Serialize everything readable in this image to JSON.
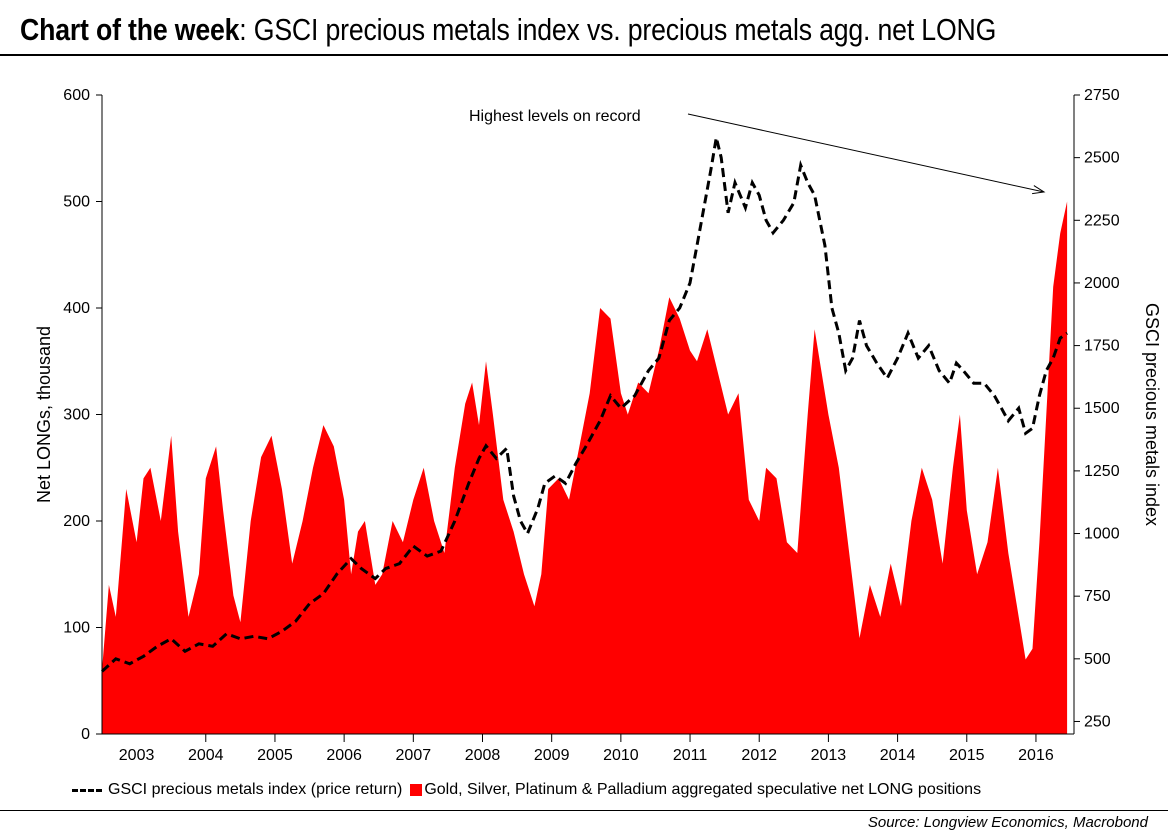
{
  "title": {
    "bold": "Chart of the week",
    "rest": ": GSCI precious metals index vs. precious metals agg. net LONG"
  },
  "source": "Source: Longview Economics, Macrobond",
  "colors": {
    "bars": "#ff0000",
    "line": "#000000"
  },
  "chart_data": {
    "type": "area",
    "x_ticks": [
      "2003",
      "2004",
      "2005",
      "2006",
      "2007",
      "2008",
      "2009",
      "2010",
      "2011",
      "2012",
      "2013",
      "2014",
      "2015",
      "2016"
    ],
    "y_left": {
      "label": "Net LONGs, thousand",
      "range": [
        0,
        600
      ],
      "ticks": [
        "0",
        "100",
        "200",
        "300",
        "400",
        "500",
        "600"
      ]
    },
    "y_right": {
      "label": "GSCI precious metals index",
      "range": [
        200,
        2750
      ],
      "ticks": [
        "250",
        "500",
        "750",
        "1000",
        "1250",
        "1500",
        "1750",
        "2000",
        "2250",
        "2500",
        "2750"
      ]
    },
    "annotation": {
      "text": "Highest levels on record"
    },
    "series": [
      {
        "name": "Gold, Silver, Platinum & Palladium aggregated speculative net LONG positions",
        "style": "area",
        "axis": "left",
        "points": [
          [
            2002.5,
            60
          ],
          [
            2002.6,
            140
          ],
          [
            2002.7,
            110
          ],
          [
            2002.85,
            230
          ],
          [
            2003.0,
            180
          ],
          [
            2003.1,
            240
          ],
          [
            2003.2,
            250
          ],
          [
            2003.35,
            200
          ],
          [
            2003.5,
            280
          ],
          [
            2003.6,
            190
          ],
          [
            2003.75,
            110
          ],
          [
            2003.9,
            150
          ],
          [
            2004.0,
            240
          ],
          [
            2004.15,
            270
          ],
          [
            2004.25,
            210
          ],
          [
            2004.4,
            130
          ],
          [
            2004.5,
            105
          ],
          [
            2004.65,
            200
          ],
          [
            2004.8,
            260
          ],
          [
            2004.95,
            280
          ],
          [
            2005.1,
            230
          ],
          [
            2005.25,
            160
          ],
          [
            2005.4,
            200
          ],
          [
            2005.55,
            250
          ],
          [
            2005.7,
            290
          ],
          [
            2005.85,
            270
          ],
          [
            2006.0,
            220
          ],
          [
            2006.1,
            150
          ],
          [
            2006.2,
            190
          ],
          [
            2006.3,
            200
          ],
          [
            2006.45,
            140
          ],
          [
            2006.55,
            150
          ],
          [
            2006.7,
            200
          ],
          [
            2006.85,
            180
          ],
          [
            2007.0,
            220
          ],
          [
            2007.15,
            250
          ],
          [
            2007.3,
            200
          ],
          [
            2007.45,
            170
          ],
          [
            2007.6,
            250
          ],
          [
            2007.75,
            310
          ],
          [
            2007.85,
            330
          ],
          [
            2007.95,
            290
          ],
          [
            2008.05,
            350
          ],
          [
            2008.15,
            300
          ],
          [
            2008.3,
            220
          ],
          [
            2008.45,
            190
          ],
          [
            2008.6,
            150
          ],
          [
            2008.75,
            120
          ],
          [
            2008.85,
            150
          ],
          [
            2008.95,
            230
          ],
          [
            2009.1,
            240
          ],
          [
            2009.25,
            220
          ],
          [
            2009.4,
            270
          ],
          [
            2009.55,
            320
          ],
          [
            2009.7,
            400
          ],
          [
            2009.85,
            390
          ],
          [
            2010.0,
            320
          ],
          [
            2010.1,
            300
          ],
          [
            2010.25,
            330
          ],
          [
            2010.4,
            320
          ],
          [
            2010.55,
            360
          ],
          [
            2010.7,
            410
          ],
          [
            2010.85,
            390
          ],
          [
            2011.0,
            360
          ],
          [
            2011.1,
            350
          ],
          [
            2011.25,
            380
          ],
          [
            2011.4,
            340
          ],
          [
            2011.55,
            300
          ],
          [
            2011.7,
            320
          ],
          [
            2011.85,
            220
          ],
          [
            2012.0,
            200
          ],
          [
            2012.1,
            250
          ],
          [
            2012.25,
            240
          ],
          [
            2012.4,
            180
          ],
          [
            2012.55,
            170
          ],
          [
            2012.7,
            300
          ],
          [
            2012.8,
            380
          ],
          [
            2012.9,
            340
          ],
          [
            2013.0,
            300
          ],
          [
            2013.15,
            250
          ],
          [
            2013.3,
            170
          ],
          [
            2013.45,
            90
          ],
          [
            2013.6,
            140
          ],
          [
            2013.75,
            110
          ],
          [
            2013.9,
            160
          ],
          [
            2014.05,
            120
          ],
          [
            2014.2,
            200
          ],
          [
            2014.35,
            250
          ],
          [
            2014.5,
            220
          ],
          [
            2014.65,
            160
          ],
          [
            2014.8,
            250
          ],
          [
            2014.9,
            300
          ],
          [
            2015.0,
            210
          ],
          [
            2015.15,
            150
          ],
          [
            2015.3,
            180
          ],
          [
            2015.45,
            250
          ],
          [
            2015.6,
            170
          ],
          [
            2015.75,
            110
          ],
          [
            2015.85,
            70
          ],
          [
            2015.95,
            80
          ],
          [
            2016.05,
            180
          ],
          [
            2016.15,
            300
          ],
          [
            2016.25,
            420
          ],
          [
            2016.35,
            470
          ],
          [
            2016.45,
            500
          ]
        ]
      },
      {
        "name": "GSCI precious metals index (price return)",
        "style": "dashed-line",
        "axis": "right",
        "points": [
          [
            2002.5,
            450
          ],
          [
            2002.7,
            500
          ],
          [
            2002.9,
            480
          ],
          [
            2003.1,
            510
          ],
          [
            2003.3,
            550
          ],
          [
            2003.5,
            580
          ],
          [
            2003.7,
            530
          ],
          [
            2003.9,
            560
          ],
          [
            2004.1,
            550
          ],
          [
            2004.3,
            600
          ],
          [
            2004.5,
            580
          ],
          [
            2004.7,
            590
          ],
          [
            2004.9,
            580
          ],
          [
            2005.1,
            610
          ],
          [
            2005.3,
            650
          ],
          [
            2005.5,
            720
          ],
          [
            2005.7,
            760
          ],
          [
            2005.9,
            840
          ],
          [
            2006.1,
            900
          ],
          [
            2006.25,
            860
          ],
          [
            2006.45,
            820
          ],
          [
            2006.6,
            860
          ],
          [
            2006.8,
            880
          ],
          [
            2007.0,
            950
          ],
          [
            2007.2,
            910
          ],
          [
            2007.4,
            930
          ],
          [
            2007.6,
            1050
          ],
          [
            2007.8,
            1200
          ],
          [
            2007.95,
            1300
          ],
          [
            2008.05,
            1350
          ],
          [
            2008.2,
            1300
          ],
          [
            2008.35,
            1340
          ],
          [
            2008.45,
            1150
          ],
          [
            2008.55,
            1050
          ],
          [
            2008.65,
            1000
          ],
          [
            2008.8,
            1100
          ],
          [
            2008.9,
            1200
          ],
          [
            2009.05,
            1230
          ],
          [
            2009.2,
            1200
          ],
          [
            2009.35,
            1280
          ],
          [
            2009.5,
            1350
          ],
          [
            2009.7,
            1450
          ],
          [
            2009.85,
            1550
          ],
          [
            2010.0,
            1500
          ],
          [
            2010.2,
            1550
          ],
          [
            2010.4,
            1650
          ],
          [
            2010.55,
            1700
          ],
          [
            2010.7,
            1850
          ],
          [
            2010.85,
            1900
          ],
          [
            2011.0,
            2000
          ],
          [
            2011.1,
            2150
          ],
          [
            2011.2,
            2300
          ],
          [
            2011.3,
            2450
          ],
          [
            2011.38,
            2580
          ],
          [
            2011.45,
            2500
          ],
          [
            2011.55,
            2280
          ],
          [
            2011.65,
            2400
          ],
          [
            2011.8,
            2300
          ],
          [
            2011.9,
            2400
          ],
          [
            2012.0,
            2350
          ],
          [
            2012.1,
            2250
          ],
          [
            2012.2,
            2200
          ],
          [
            2012.35,
            2250
          ],
          [
            2012.5,
            2320
          ],
          [
            2012.6,
            2470
          ],
          [
            2012.7,
            2400
          ],
          [
            2012.8,
            2350
          ],
          [
            2012.95,
            2150
          ],
          [
            2013.05,
            1900
          ],
          [
            2013.15,
            1800
          ],
          [
            2013.25,
            1650
          ],
          [
            2013.35,
            1700
          ],
          [
            2013.45,
            1850
          ],
          [
            2013.55,
            1750
          ],
          [
            2013.7,
            1680
          ],
          [
            2013.85,
            1620
          ],
          [
            2014.0,
            1700
          ],
          [
            2014.15,
            1800
          ],
          [
            2014.3,
            1700
          ],
          [
            2014.45,
            1750
          ],
          [
            2014.6,
            1650
          ],
          [
            2014.75,
            1600
          ],
          [
            2014.85,
            1680
          ],
          [
            2014.95,
            1650
          ],
          [
            2015.1,
            1600
          ],
          [
            2015.25,
            1600
          ],
          [
            2015.4,
            1550
          ],
          [
            2015.5,
            1500
          ],
          [
            2015.6,
            1450
          ],
          [
            2015.75,
            1500
          ],
          [
            2015.85,
            1400
          ],
          [
            2015.95,
            1420
          ],
          [
            2016.05,
            1550
          ],
          [
            2016.15,
            1650
          ],
          [
            2016.25,
            1700
          ],
          [
            2016.35,
            1780
          ],
          [
            2016.45,
            1800
          ]
        ]
      }
    ]
  }
}
